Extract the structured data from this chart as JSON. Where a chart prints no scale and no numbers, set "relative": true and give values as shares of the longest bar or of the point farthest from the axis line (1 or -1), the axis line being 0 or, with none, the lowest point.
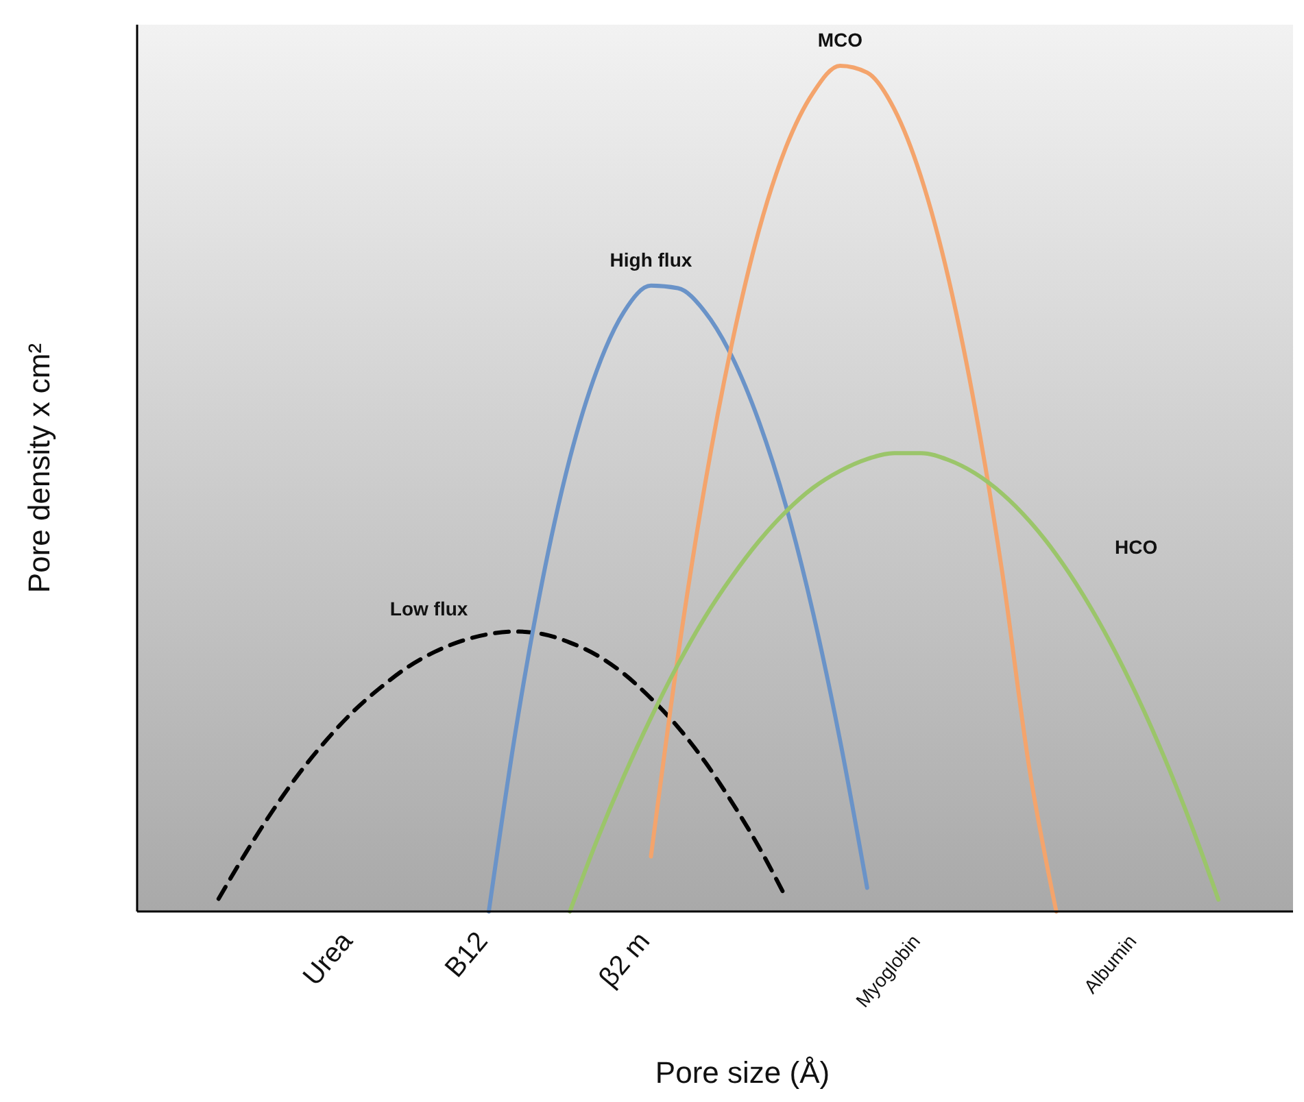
{
  "chart_data": {
    "type": "line",
    "relative": true,
    "xlabel": "Pore size (Å)",
    "ylabel": "Pore density x cm²",
    "categories": [
      null,
      null,
      null,
      null,
      null,
      null,
      null,
      "Urea",
      null,
      null,
      null,
      null,
      "B12",
      null,
      null,
      null,
      null,
      null,
      "β2 m",
      null,
      null,
      null,
      null,
      null,
      null,
      null,
      null,
      null,
      "Myoglobin",
      null,
      null,
      null,
      null,
      null,
      null,
      null,
      "Albumin",
      null,
      null,
      null,
      null,
      null
    ],
    "marker": "none",
    "legend": false,
    "grid": false,
    "series": [
      {
        "name": "Low flux",
        "color": "#000000",
        "line_style": "dashed",
        "values": [
          null,
          null,
          0.015,
          0.069,
          0.119,
          0.164,
          0.203,
          0.237,
          0.265,
          0.289,
          0.307,
          0.32,
          0.328,
          0.331,
          0.328,
          0.318,
          0.303,
          0.281,
          0.252,
          0.218,
          0.177,
          0.129,
          0.076,
          0.016,
          null,
          null,
          null,
          null,
          null,
          null,
          null,
          null,
          null,
          null,
          null,
          null,
          null,
          null,
          null,
          null,
          null,
          null
        ]
      },
      {
        "name": "High flux",
        "color": "#6a93c8",
        "line_style": "solid",
        "values": [
          null,
          null,
          null,
          null,
          null,
          null,
          null,
          null,
          null,
          null,
          null,
          null,
          0,
          0.215,
          0.394,
          0.536,
          0.64,
          0.709,
          0.74,
          0.737,
          0.709,
          0.656,
          0.579,
          0.479,
          0.353,
          0.202,
          0.028,
          null,
          null,
          null,
          null,
          null,
          null,
          null,
          null,
          null,
          null,
          null,
          null,
          null,
          null,
          null
        ]
      },
      {
        "name": "MCO",
        "color": "#f4a46c",
        "line_style": "solid",
        "values": [
          null,
          null,
          null,
          null,
          null,
          null,
          null,
          null,
          null,
          null,
          null,
          null,
          null,
          null,
          null,
          null,
          null,
          null,
          0.065,
          0.302,
          0.505,
          0.672,
          0.806,
          0.904,
          0.968,
          1,
          0.992,
          0.949,
          0.868,
          0.75,
          0.594,
          0.401,
          0.17,
          0,
          null,
          null,
          null,
          null,
          null,
          null,
          null,
          null
        ]
      },
      {
        "name": "HCO",
        "color": "#9bc56a",
        "line_style": "solid",
        "values": [
          null,
          null,
          null,
          null,
          null,
          null,
          null,
          null,
          null,
          null,
          null,
          null,
          null,
          null,
          null,
          0,
          0.084,
          0.16,
          0.229,
          0.292,
          0.348,
          0.396,
          0.438,
          0.473,
          0.501,
          0.521,
          0.535,
          0.542,
          0.542,
          0.534,
          0.518,
          0.494,
          0.462,
          0.422,
          0.374,
          0.318,
          0.254,
          0.182,
          0.102,
          0.014,
          null,
          null
        ]
      }
    ]
  }
}
